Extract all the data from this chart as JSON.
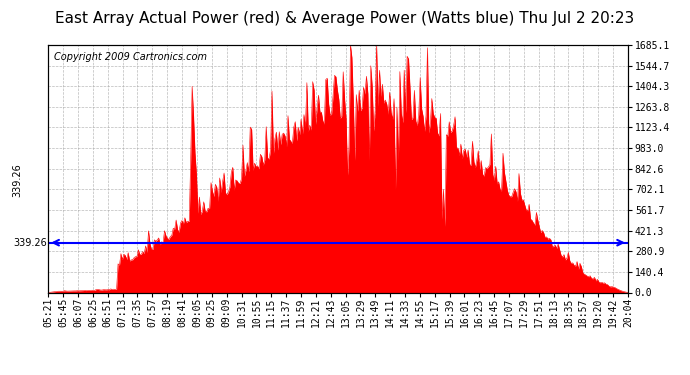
{
  "title": "East Array Actual Power (red) & Average Power (Watts blue) Thu Jul 2 20:23",
  "copyright": "Copyright 2009 Cartronics.com",
  "average_power": 339.26,
  "y_max": 1685.1,
  "y_ticks": [
    0.0,
    140.4,
    280.9,
    421.3,
    561.7,
    702.1,
    842.6,
    983.0,
    1123.4,
    1263.8,
    1404.3,
    1544.7,
    1685.1
  ],
  "x_labels": [
    "05:21",
    "05:45",
    "06:07",
    "06:25",
    "06:51",
    "07:13",
    "07:35",
    "07:57",
    "08:19",
    "08:41",
    "09:05",
    "09:25",
    "09:09",
    "10:31",
    "10:55",
    "11:15",
    "11:37",
    "11:59",
    "12:21",
    "12:43",
    "13:05",
    "13:29",
    "13:49",
    "14:11",
    "14:33",
    "14:55",
    "15:17",
    "15:39",
    "16:01",
    "16:23",
    "16:45",
    "17:07",
    "17:29",
    "17:51",
    "18:13",
    "18:35",
    "18:57",
    "19:20",
    "19:42",
    "20:04"
  ],
  "fill_color": "#FF0000",
  "line_color": "#FF0000",
  "avg_line_color": "#0000FF",
  "grid_color": "#AAAAAA",
  "background_color": "#FFFFFF",
  "border_color": "#000000",
  "title_fontsize": 11,
  "copyright_fontsize": 7,
  "tick_fontsize": 7
}
